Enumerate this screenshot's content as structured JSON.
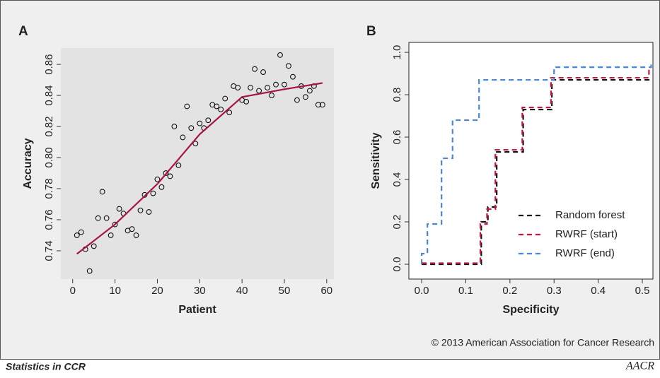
{
  "chart_data": [
    {
      "type": "scatter",
      "panel": "A",
      "xlabel": "Patient",
      "ylabel": "Accuracy",
      "xlim": [
        -2.8,
        61.7
      ],
      "ylim": [
        0.7218,
        0.8705
      ],
      "xticks": [
        0,
        10,
        20,
        30,
        40,
        50,
        60
      ],
      "yticks": [
        0.74,
        0.76,
        0.78,
        {
          "value": 0.8,
          "label": "0.80"
        },
        0.82,
        0.84,
        0.86
      ],
      "background": "#e3e3e3",
      "series": [
        {
          "type": "points",
          "color": "#000000",
          "x": [
            1,
            2,
            3,
            4,
            5,
            6,
            7,
            8,
            9,
            10,
            11,
            12,
            13,
            14,
            15,
            16,
            17,
            18,
            19,
            20,
            21,
            22,
            23,
            24,
            25,
            26,
            27,
            28,
            29,
            30,
            31,
            32,
            33,
            34,
            35,
            36,
            37,
            38,
            39,
            40,
            41,
            42,
            43,
            44,
            45,
            46,
            47,
            48,
            49,
            50,
            51,
            52,
            53,
            54,
            55,
            56,
            57,
            58,
            59
          ],
          "values": [
            0.75,
            0.752,
            0.741,
            0.727,
            0.743,
            0.761,
            0.778,
            0.761,
            0.75,
            0.757,
            0.767,
            0.764,
            0.753,
            0.754,
            0.75,
            0.766,
            0.776,
            0.765,
            0.777,
            0.786,
            0.781,
            0.79,
            0.788,
            0.82,
            0.795,
            0.813,
            0.833,
            0.819,
            0.809,
            0.822,
            0.819,
            0.824,
            0.834,
            0.833,
            0.831,
            0.838,
            0.829,
            0.846,
            0.845,
            0.837,
            0.836,
            0.845,
            0.857,
            0.843,
            0.855,
            0.845,
            0.84,
            0.847,
            0.866,
            0.847,
            0.859,
            0.852,
            0.837,
            0.846,
            0.839,
            0.843,
            0.846,
            0.834,
            0.834
          ]
        },
        {
          "type": "line",
          "color": "#a8163f",
          "dashed": false,
          "x": [
            1,
            10,
            20,
            30,
            40,
            50,
            59
          ],
          "values": [
            0.738,
            0.757,
            0.783,
            0.815,
            0.839,
            0.844,
            0.848
          ]
        }
      ]
    },
    {
      "type": "line",
      "panel": "B",
      "xlabel": "Specificity",
      "ylabel": "Sensitivity",
      "xlim": [
        -0.029,
        0.524
      ],
      "ylim": [
        -0.07,
        1.047
      ],
      "xticks": [
        {
          "value": 0,
          "label": "0.0"
        },
        0.1,
        0.2,
        0.3,
        0.4,
        0.5
      ],
      "yticks": [
        {
          "value": 0,
          "label": "0.0"
        },
        0.2,
        0.4,
        0.6,
        0.8,
        {
          "value": 1,
          "label": "1.0"
        }
      ],
      "background": "#ffffff",
      "legend": "lower right",
      "series": [
        {
          "type": "line",
          "name": "Random forest",
          "color": "#111111",
          "dashed": true,
          "x": [
            0,
            0.135,
            0.135,
            0.15,
            0.15,
            0.17,
            0.17,
            0.23,
            0.23,
            0.295,
            0.295,
            0.52
          ],
          "values": [
            0,
            0,
            0.2,
            0.2,
            0.27,
            0.27,
            0.53,
            0.53,
            0.73,
            0.73,
            0.87,
            0.87
          ]
        },
        {
          "type": "line",
          "name": "RWRF (start)",
          "color": "#c8163f",
          "dashed": true,
          "x": [
            0,
            0.133,
            0.133,
            0.148,
            0.148,
            0.167,
            0.167,
            0.228,
            0.228,
            0.293,
            0.293,
            0.515,
            0.515,
            0.52
          ],
          "values": [
            0.005,
            0.005,
            0.19,
            0.19,
            0.26,
            0.26,
            0.54,
            0.54,
            0.74,
            0.74,
            0.88,
            0.88,
            0.93,
            0.93
          ]
        },
        {
          "type": "line",
          "name": "RWRF (end)",
          "color": "#4a86d8",
          "dashed": true,
          "x": [
            0,
            0,
            0.013,
            0.013,
            0.045,
            0.045,
            0.07,
            0.07,
            0.13,
            0.13,
            0.3,
            0.3,
            0.52,
            0.52
          ],
          "values": [
            0,
            0.05,
            0.05,
            0.19,
            0.19,
            0.5,
            0.5,
            0.68,
            0.68,
            0.87,
            0.87,
            0.93,
            0.93,
            0.95
          ]
        }
      ]
    }
  ],
  "copyright": "© 2013 American Association for Cancer Research",
  "footer": {
    "title": "Statistics in CCR",
    "logo": "AACR"
  }
}
